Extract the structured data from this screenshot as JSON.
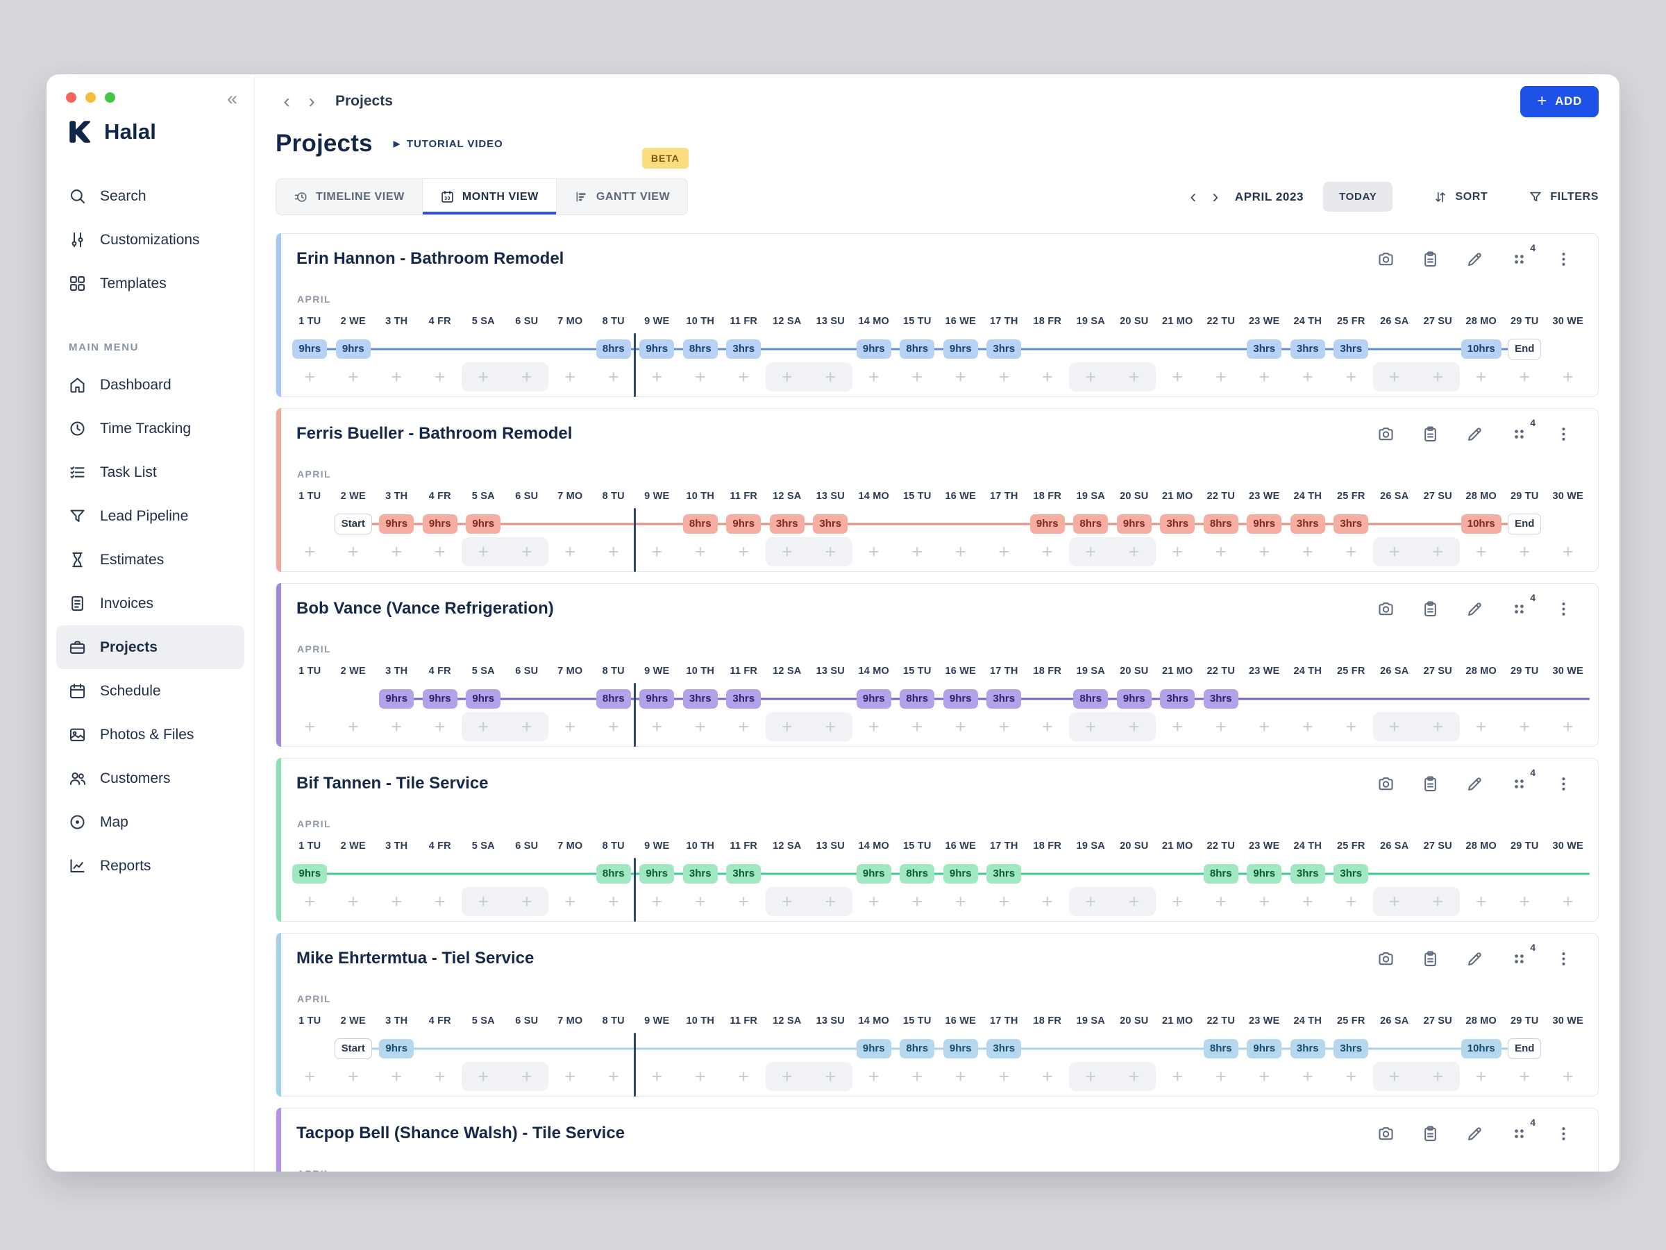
{
  "glyphs": {
    "back": "‹",
    "forward": "›",
    "collapse": "«",
    "plus": "+",
    "play": "▶"
  },
  "sidebar": {
    "logo_text": "Halal",
    "section_label": "MAIN MENU",
    "top_items": [
      {
        "label": "Search",
        "icon": "search-icon"
      },
      {
        "label": "Customizations",
        "icon": "sliders-icon"
      },
      {
        "label": "Templates",
        "icon": "templates-icon"
      }
    ],
    "menu_items": [
      {
        "label": "Dashboard",
        "icon": "home-icon"
      },
      {
        "label": "Time Tracking",
        "icon": "clock-icon"
      },
      {
        "label": "Task List",
        "icon": "task-list-icon"
      },
      {
        "label": "Lead Pipeline",
        "icon": "funnel-icon"
      },
      {
        "label": "Estimates",
        "icon": "hourglass-icon"
      },
      {
        "label": "Invoices",
        "icon": "invoice-icon"
      },
      {
        "label": "Projects",
        "icon": "toolbox-icon",
        "selected": true
      },
      {
        "label": "Schedule",
        "icon": "calendar-icon"
      },
      {
        "label": "Photos & Files",
        "icon": "photo-icon"
      },
      {
        "label": "Customers",
        "icon": "customers-icon"
      },
      {
        "label": "Map",
        "icon": "map-icon"
      },
      {
        "label": "Reports",
        "icon": "reports-icon"
      }
    ]
  },
  "header": {
    "breadcrumb": "Projects",
    "add_label": "ADD",
    "page_title": "Projects",
    "tutorial_label": "TUTORIAL VIDEO",
    "beta_badge": "BETA",
    "tabs": [
      {
        "label": "TIMELINE VIEW",
        "icon": "timeline-view-icon",
        "active": false
      },
      {
        "label": "MONTH VIEW",
        "icon": "month-view-icon",
        "active": true
      },
      {
        "label": "GANTT VIEW",
        "icon": "gantt-view-icon",
        "active": false
      }
    ],
    "month_label": "APRIL 2023",
    "today_label": "TODAY",
    "sort_label": "SORT",
    "filters_label": "FILTERS"
  },
  "timeline": {
    "month_label": "APRIL",
    "columns": 30,
    "today_after_day": 8,
    "weekend_days": [
      5,
      6,
      12,
      13,
      19,
      20,
      26,
      27
    ],
    "days": [
      {
        "n": "1",
        "d": "TU"
      },
      {
        "n": "2",
        "d": "WE"
      },
      {
        "n": "3",
        "d": "TH"
      },
      {
        "n": "4",
        "d": "FR"
      },
      {
        "n": "5",
        "d": "SA"
      },
      {
        "n": "6",
        "d": "SU"
      },
      {
        "n": "7",
        "d": "MO"
      },
      {
        "n": "8",
        "d": "TU"
      },
      {
        "n": "9",
        "d": "WE"
      },
      {
        "n": "10",
        "d": "TH"
      },
      {
        "n": "11",
        "d": "FR"
      },
      {
        "n": "12",
        "d": "SA"
      },
      {
        "n": "13",
        "d": "SU"
      },
      {
        "n": "14",
        "d": "MO"
      },
      {
        "n": "15",
        "d": "TU"
      },
      {
        "n": "16",
        "d": "WE"
      },
      {
        "n": "17",
        "d": "TH"
      },
      {
        "n": "18",
        "d": "FR"
      },
      {
        "n": "19",
        "d": "SA"
      },
      {
        "n": "20",
        "d": "SU"
      },
      {
        "n": "21",
        "d": "MO"
      },
      {
        "n": "22",
        "d": "TU"
      },
      {
        "n": "23",
        "d": "WE"
      },
      {
        "n": "24",
        "d": "TH"
      },
      {
        "n": "25",
        "d": "FR"
      },
      {
        "n": "26",
        "d": "SA"
      },
      {
        "n": "27",
        "d": "SU"
      },
      {
        "n": "28",
        "d": "MO"
      },
      {
        "n": "29",
        "d": "TU"
      },
      {
        "n": "30",
        "d": "WE"
      }
    ]
  },
  "palette": {
    "blue": {
      "accent": "#A6C8F1",
      "chip_bg": "#B7D2F4",
      "chip_text": "#16406F",
      "line": "#5B8FDC"
    },
    "coral": {
      "accent": "#F4A89C",
      "chip_bg": "#F6ADA2",
      "chip_text": "#7E2B1C",
      "line": "#EE8E7D"
    },
    "purple": {
      "accent": "#9F89DE",
      "chip_bg": "#B3A2E9",
      "chip_text": "#2E2364",
      "line": "#7763CE"
    },
    "green": {
      "accent": "#8CE0B4",
      "chip_bg": "#A0E7C2",
      "chip_text": "#0A5B36",
      "line": "#3FCA8C"
    },
    "cyan": {
      "accent": "#A3D2E9",
      "chip_bg": "#B6D8EF",
      "chip_text": "#174B6E",
      "line": "#A5D2E8"
    },
    "violet": {
      "accent": "#B493E6",
      "chip_bg": "#C9B4EF",
      "chip_text": "#3A2A6E",
      "line": "#9D7FDD"
    }
  },
  "projects": [
    {
      "name": "Erin Hannon - Bathroom Remodel",
      "color": "blue",
      "badge_count": "4",
      "line": {
        "from": 1,
        "to": 29,
        "to_edge": false
      },
      "entries": [
        {
          "day": 1,
          "label": "9hrs"
        },
        {
          "day": 2,
          "label": "9hrs"
        },
        {
          "day": 8,
          "label": "8hrs"
        },
        {
          "day": 9,
          "label": "9hrs"
        },
        {
          "day": 10,
          "label": "8hrs"
        },
        {
          "day": 11,
          "label": "3hrs"
        },
        {
          "day": 14,
          "label": "9hrs"
        },
        {
          "day": 15,
          "label": "8hrs"
        },
        {
          "day": 16,
          "label": "9hrs"
        },
        {
          "day": 17,
          "label": "3hrs"
        },
        {
          "day": 23,
          "label": "3hrs"
        },
        {
          "day": 24,
          "label": "3hrs"
        },
        {
          "day": 25,
          "label": "3hrs"
        },
        {
          "day": 28,
          "label": "10hrs"
        },
        {
          "day": 29,
          "label": "End",
          "boundary": true
        }
      ]
    },
    {
      "name": "Ferris Bueller - Bathroom Remodel",
      "color": "coral",
      "badge_count": "4",
      "line": {
        "from": 2,
        "to": 29,
        "to_edge": false
      },
      "entries": [
        {
          "day": 2,
          "label": "Start",
          "boundary": true
        },
        {
          "day": 3,
          "label": "9hrs"
        },
        {
          "day": 4,
          "label": "9hrs"
        },
        {
          "day": 5,
          "label": "9hrs"
        },
        {
          "day": 10,
          "label": "8hrs"
        },
        {
          "day": 11,
          "label": "9hrs"
        },
        {
          "day": 12,
          "label": "3hrs"
        },
        {
          "day": 13,
          "label": "3hrs"
        },
        {
          "day": 18,
          "label": "9hrs"
        },
        {
          "day": 19,
          "label": "8hrs"
        },
        {
          "day": 20,
          "label": "9hrs"
        },
        {
          "day": 21,
          "label": "3hrs"
        },
        {
          "day": 22,
          "label": "8hrs"
        },
        {
          "day": 23,
          "label": "9hrs"
        },
        {
          "day": 24,
          "label": "3hrs"
        },
        {
          "day": 25,
          "label": "3hrs"
        },
        {
          "day": 28,
          "label": "10hrs"
        },
        {
          "day": 29,
          "label": "End",
          "boundary": true
        }
      ]
    },
    {
      "name": "Bob Vance (Vance Refrigeration)",
      "color": "purple",
      "badge_count": "4",
      "line": {
        "from": 3,
        "to": 30,
        "to_edge": true
      },
      "entries": [
        {
          "day": 3,
          "label": "9hrs"
        },
        {
          "day": 4,
          "label": "9hrs"
        },
        {
          "day": 5,
          "label": "9hrs"
        },
        {
          "day": 8,
          "label": "8hrs"
        },
        {
          "day": 9,
          "label": "9hrs"
        },
        {
          "day": 10,
          "label": "3hrs"
        },
        {
          "day": 11,
          "label": "3hrs"
        },
        {
          "day": 14,
          "label": "9hrs"
        },
        {
          "day": 15,
          "label": "8hrs"
        },
        {
          "day": 16,
          "label": "9hrs"
        },
        {
          "day": 17,
          "label": "3hrs"
        },
        {
          "day": 19,
          "label": "8hrs"
        },
        {
          "day": 20,
          "label": "9hrs"
        },
        {
          "day": 21,
          "label": "3hrs"
        },
        {
          "day": 22,
          "label": "3hrs"
        }
      ]
    },
    {
      "name": "Bif Tannen - Tile Service",
      "color": "green",
      "badge_count": "4",
      "line": {
        "from": 1,
        "to": 30,
        "to_edge": true
      },
      "entries": [
        {
          "day": 1,
          "label": "9hrs"
        },
        {
          "day": 8,
          "label": "8hrs"
        },
        {
          "day": 9,
          "label": "9hrs"
        },
        {
          "day": 10,
          "label": "3hrs"
        },
        {
          "day": 11,
          "label": "3hrs"
        },
        {
          "day": 14,
          "label": "9hrs"
        },
        {
          "day": 15,
          "label": "8hrs"
        },
        {
          "day": 16,
          "label": "9hrs"
        },
        {
          "day": 17,
          "label": "3hrs"
        },
        {
          "day": 22,
          "label": "8hrs"
        },
        {
          "day": 23,
          "label": "9hrs"
        },
        {
          "day": 24,
          "label": "3hrs"
        },
        {
          "day": 25,
          "label": "3hrs"
        }
      ]
    },
    {
      "name": "Mike Ehrtermtua - Tiel Service",
      "color": "cyan",
      "badge_count": "4",
      "line": {
        "from": 2,
        "to": 29,
        "to_edge": false
      },
      "entries": [
        {
          "day": 2,
          "label": "Start",
          "boundary": true
        },
        {
          "day": 3,
          "label": "9hrs"
        },
        {
          "day": 14,
          "label": "9hrs"
        },
        {
          "day": 15,
          "label": "8hrs"
        },
        {
          "day": 16,
          "label": "9hrs"
        },
        {
          "day": 17,
          "label": "3hrs"
        },
        {
          "day": 22,
          "label": "8hrs"
        },
        {
          "day": 23,
          "label": "9hrs"
        },
        {
          "day": 24,
          "label": "3hrs"
        },
        {
          "day": 25,
          "label": "3hrs"
        },
        {
          "day": 28,
          "label": "10hrs"
        },
        {
          "day": 29,
          "label": "End",
          "boundary": true
        }
      ]
    },
    {
      "name": "Tacpop Bell (Shance Walsh) - Tile Service",
      "color": "violet",
      "badge_count": "4",
      "line": null,
      "entries": []
    }
  ]
}
